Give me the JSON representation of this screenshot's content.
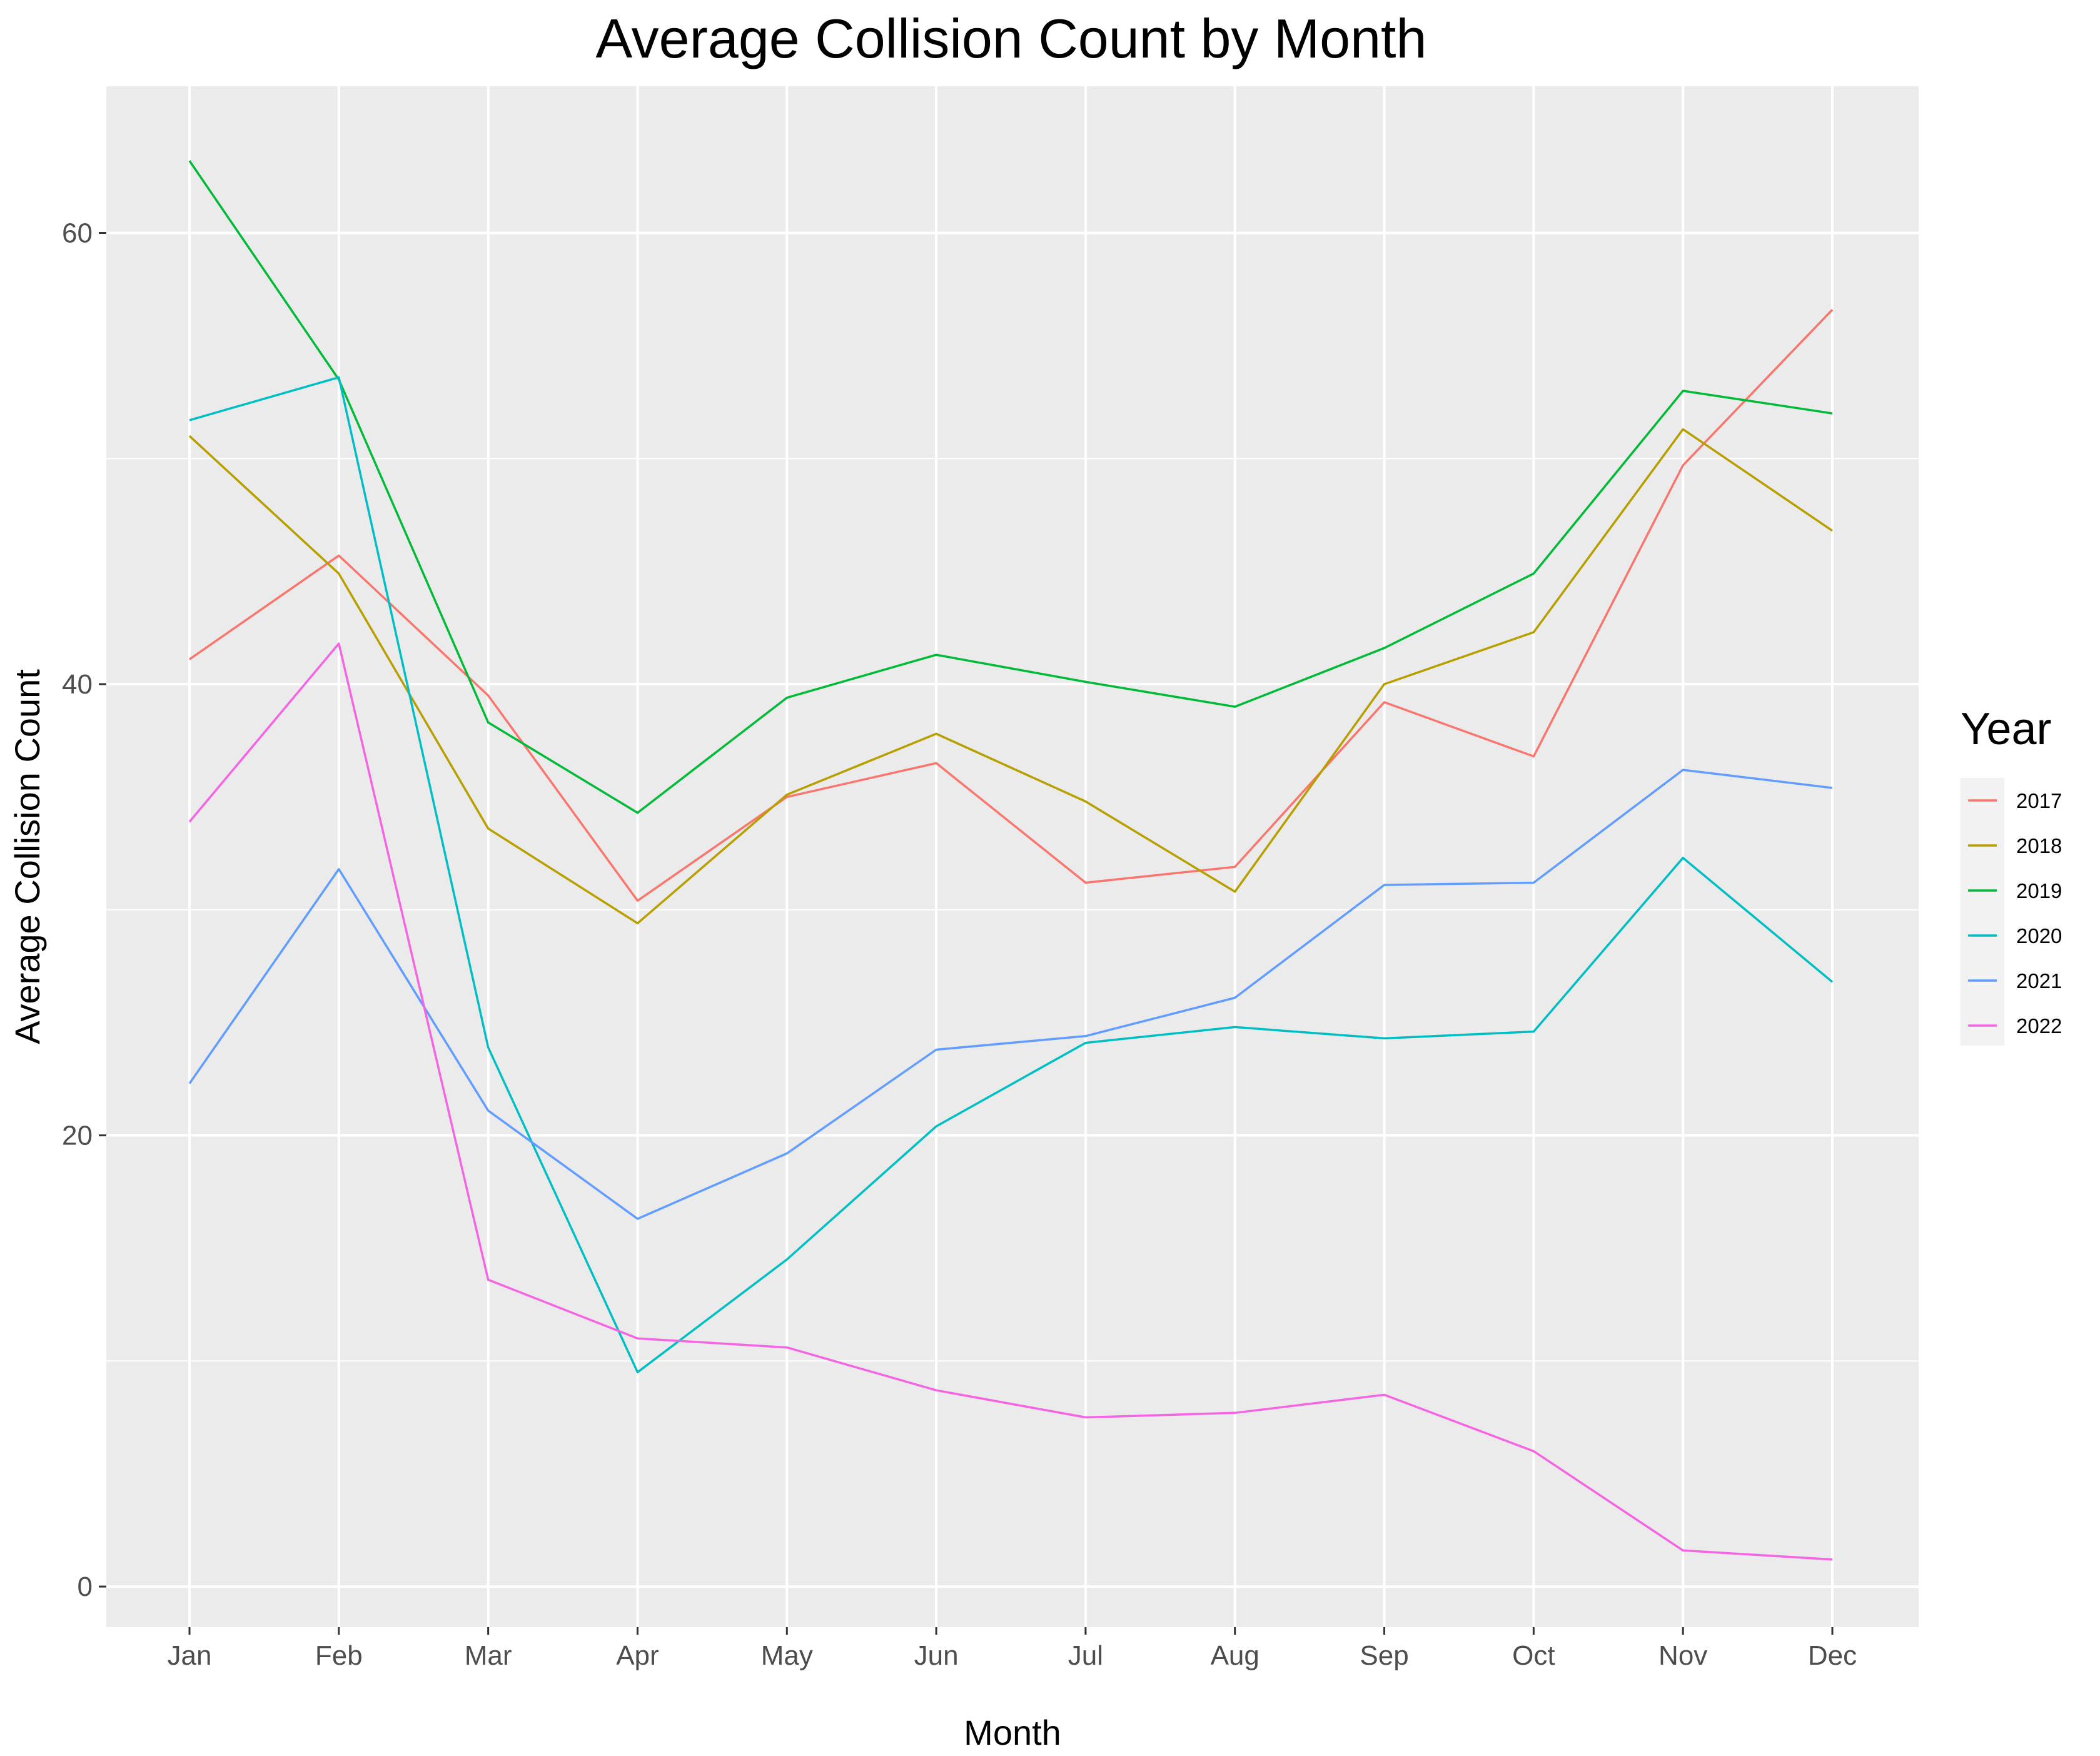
{
  "chart_data": {
    "type": "line",
    "title": "Average Collision Count by Month",
    "xlabel": "Month",
    "ylabel": "Average Collision Count",
    "categories": [
      "Jan",
      "Feb",
      "Mar",
      "Apr",
      "May",
      "Jun",
      "Jul",
      "Aug",
      "Sep",
      "Oct",
      "Nov",
      "Dec"
    ],
    "ylim": [
      -1.8,
      66.5
    ],
    "yticks": [
      0,
      20,
      40,
      60
    ],
    "grid": true,
    "legend": {
      "title": "Year",
      "placement": "right"
    },
    "series": [
      {
        "name": "2017",
        "color": "#F8766D",
        "values": [
          41.1,
          45.7,
          39.5,
          30.4,
          35.0,
          36.5,
          31.2,
          31.9,
          39.2,
          36.8,
          49.7,
          56.6
        ]
      },
      {
        "name": "2018",
        "color": "#B79F00",
        "values": [
          51.0,
          44.9,
          33.6,
          29.4,
          35.1,
          37.8,
          34.8,
          30.8,
          40.0,
          42.3,
          51.3,
          46.8
        ]
      },
      {
        "name": "2019",
        "color": "#00BA38",
        "values": [
          63.2,
          53.5,
          38.3,
          34.3,
          39.4,
          41.3,
          40.1,
          39.0,
          41.6,
          44.9,
          53.0,
          52.0
        ]
      },
      {
        "name": "2020",
        "color": "#00BFC4",
        "values": [
          51.7,
          53.6,
          23.9,
          9.5,
          14.5,
          20.4,
          24.1,
          24.8,
          24.3,
          24.6,
          32.3,
          26.8
        ]
      },
      {
        "name": "2021",
        "color": "#619CFF",
        "values": [
          22.3,
          31.8,
          21.1,
          16.3,
          19.2,
          23.8,
          24.4,
          26.1,
          31.1,
          31.2,
          36.2,
          35.4
        ]
      },
      {
        "name": "2022",
        "color": "#F564E3",
        "values": [
          33.9,
          41.8,
          13.6,
          11.0,
          10.6,
          8.7,
          7.5,
          7.7,
          8.5,
          6.0,
          1.6,
          1.2
        ]
      }
    ]
  }
}
